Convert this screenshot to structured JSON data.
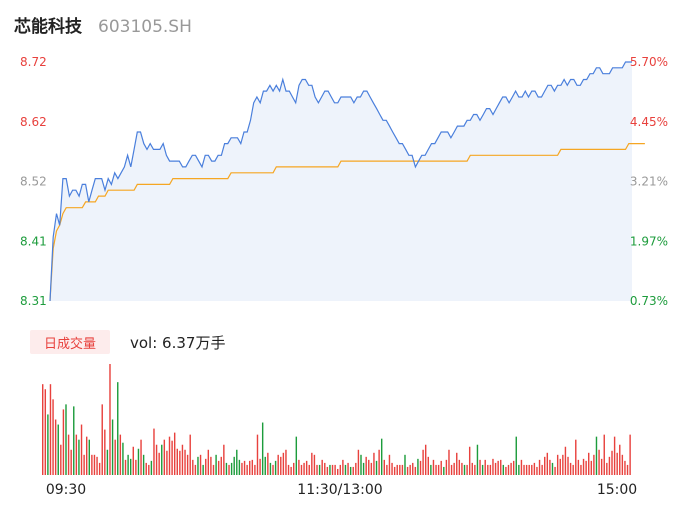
{
  "header": {
    "name": "芯能科技",
    "code": "603105.SH"
  },
  "colors": {
    "up": "#e8413d",
    "down": "#1d9c3c",
    "price_line": "#4a7fdc",
    "avg_line": "#f5a623",
    "area_fill": "#eef3fb"
  },
  "chart_data": [
    {
      "type": "line",
      "x_ticks": [
        "09:30",
        "11:30/13:00",
        "15:00"
      ],
      "y_left_ticks": [
        "8.72",
        "8.62",
        "8.52",
        "8.41",
        "8.31"
      ],
      "y_right_ticks": [
        "5.70%",
        "4.45%",
        "3.21%",
        "1.97%",
        "0.73%"
      ],
      "ylim": [
        8.31,
        8.72
      ],
      "series": [
        {
          "values": [
            8.31,
            8.42,
            8.46,
            8.44,
            8.52,
            8.52,
            8.49,
            8.5,
            8.5,
            8.49,
            8.51,
            8.51,
            8.48,
            8.5,
            8.52,
            8.52,
            8.52,
            8.5,
            8.52,
            8.51,
            8.53,
            8.52,
            8.53,
            8.54,
            8.56,
            8.54,
            8.57,
            8.6,
            8.6,
            8.58,
            8.57,
            8.58,
            8.57,
            8.57,
            8.57,
            8.58,
            8.56,
            8.55,
            8.55,
            8.55,
            8.55,
            8.54,
            8.54,
            8.55,
            8.56,
            8.56,
            8.55,
            8.54,
            8.56,
            8.56,
            8.55,
            8.55,
            8.56,
            8.56,
            8.58,
            8.58,
            8.59,
            8.59,
            8.59,
            8.58,
            8.6,
            8.6,
            8.62,
            8.65,
            8.66,
            8.65,
            8.67,
            8.67,
            8.68,
            8.67,
            8.68,
            8.67,
            8.69,
            8.67,
            8.67,
            8.66,
            8.65,
            8.68,
            8.69,
            8.69,
            8.68,
            8.68,
            8.66,
            8.65,
            8.66,
            8.67,
            8.67,
            8.66,
            8.65,
            8.65,
            8.66,
            8.66,
            8.66,
            8.66,
            8.65,
            8.66,
            8.66,
            8.67,
            8.67,
            8.66,
            8.65,
            8.64,
            8.63,
            8.62,
            8.62,
            8.61,
            8.6,
            8.59,
            8.58,
            8.58,
            8.57,
            8.56,
            8.56,
            8.54,
            8.55,
            8.56,
            8.56,
            8.57,
            8.58,
            8.58,
            8.59,
            8.6,
            8.6,
            8.6,
            8.59,
            8.6,
            8.61,
            8.61,
            8.61,
            8.62,
            8.62,
            8.63,
            8.63,
            8.62,
            8.63,
            8.64,
            8.64,
            8.63,
            8.64,
            8.65,
            8.66,
            8.66,
            8.65,
            8.66,
            8.67,
            8.66,
            8.66,
            8.67,
            8.66,
            8.67,
            8.67,
            8.66,
            8.66,
            8.67,
            8.68,
            8.68,
            8.67,
            8.68,
            8.68,
            8.69,
            8.68,
            8.69,
            8.69,
            8.68,
            8.68,
            8.69,
            8.69,
            8.7,
            8.7,
            8.71,
            8.71,
            8.7,
            8.7,
            8.7,
            8.71,
            8.71,
            8.71,
            8.71,
            8.72,
            8.72,
            8.72
          ]
        },
        {
          "values": [
            8.31,
            8.4,
            8.43,
            8.44,
            8.46,
            8.47,
            8.47,
            8.47,
            8.47,
            8.47,
            8.47,
            8.48,
            8.48,
            8.48,
            8.48,
            8.49,
            8.49,
            8.49,
            8.5,
            8.5,
            8.5,
            8.5,
            8.5,
            8.5,
            8.5,
            8.5,
            8.5,
            8.51,
            8.51,
            8.51,
            8.51,
            8.51,
            8.51,
            8.51,
            8.51,
            8.51,
            8.51,
            8.51,
            8.52,
            8.52,
            8.52,
            8.52,
            8.52,
            8.52,
            8.52,
            8.52,
            8.52,
            8.52,
            8.52,
            8.52,
            8.52,
            8.52,
            8.52,
            8.52,
            8.52,
            8.52,
            8.53,
            8.53,
            8.53,
            8.53,
            8.53,
            8.53,
            8.53,
            8.53,
            8.53,
            8.53,
            8.53,
            8.53,
            8.53,
            8.53,
            8.54,
            8.54,
            8.54,
            8.54,
            8.54,
            8.54,
            8.54,
            8.54,
            8.54,
            8.54,
            8.54,
            8.54,
            8.54,
            8.54,
            8.54,
            8.54,
            8.54,
            8.54,
            8.54,
            8.54,
            8.55,
            8.55,
            8.55,
            8.55,
            8.55,
            8.55,
            8.55,
            8.55,
            8.55,
            8.55,
            8.55,
            8.55,
            8.55,
            8.55,
            8.55,
            8.55,
            8.55,
            8.55,
            8.55,
            8.55,
            8.55,
            8.55,
            8.55,
            8.55,
            8.55,
            8.55,
            8.55,
            8.55,
            8.55,
            8.55,
            8.55,
            8.55,
            8.55,
            8.55,
            8.55,
            8.55,
            8.55,
            8.55,
            8.55,
            8.55,
            8.56,
            8.56,
            8.56,
            8.56,
            8.56,
            8.56,
            8.56,
            8.56,
            8.56,
            8.56,
            8.56,
            8.56,
            8.56,
            8.56,
            8.56,
            8.56,
            8.56,
            8.56,
            8.56,
            8.56,
            8.56,
            8.56,
            8.56,
            8.56,
            8.56,
            8.56,
            8.56,
            8.56,
            8.57,
            8.57,
            8.57,
            8.57,
            8.57,
            8.57,
            8.57,
            8.57,
            8.57,
            8.57,
            8.57,
            8.57,
            8.57,
            8.57,
            8.57,
            8.57,
            8.57,
            8.57,
            8.57,
            8.57,
            8.57,
            8.58,
            8.58,
            8.58,
            8.58,
            8.58,
            8.58
          ]
        }
      ]
    },
    {
      "type": "bar",
      "legend_label": "日成交量",
      "vol_label": "vol: 6.37万手",
      "values": [
        90,
        85,
        60,
        90,
        75,
        55,
        50,
        30,
        65,
        70,
        40,
        25,
        68,
        40,
        35,
        50,
        20,
        38,
        35,
        20,
        20,
        18,
        12,
        70,
        45,
        25,
        110,
        55,
        35,
        92,
        40,
        32,
        15,
        20,
        16,
        28,
        15,
        26,
        35,
        20,
        12,
        10,
        14,
        46,
        30,
        22,
        30,
        35,
        24,
        38,
        34,
        42,
        26,
        24,
        30,
        25,
        20,
        40,
        15,
        10,
        18,
        20,
        10,
        16,
        25,
        18,
        10,
        20,
        14,
        18,
        30,
        12,
        10,
        12,
        18,
        25,
        15,
        12,
        14,
        10,
        14,
        15,
        10,
        40,
        16,
        52,
        18,
        22,
        12,
        10,
        14,
        20,
        18,
        22,
        25,
        10,
        8,
        12,
        38,
        15,
        10,
        12,
        14,
        10,
        22,
        20,
        10,
        10,
        15,
        12,
        8,
        10,
        10,
        10,
        6,
        10,
        15,
        10,
        12,
        8,
        8,
        12,
        25,
        20,
        12,
        18,
        15,
        12,
        22,
        14,
        25,
        36,
        15,
        10,
        20,
        12,
        8,
        10,
        10,
        10,
        20,
        8,
        10,
        12,
        8,
        16,
        14,
        25,
        30,
        18,
        10,
        15,
        10,
        10,
        14,
        8,
        15,
        25,
        10,
        12,
        22,
        15,
        12,
        10,
        10,
        28,
        12,
        10,
        30,
        15,
        10,
        15,
        10,
        10,
        16,
        12,
        14,
        15,
        10,
        8,
        10,
        12,
        14,
        38,
        10,
        15,
        10,
        10,
        10,
        10,
        12,
        8,
        15,
        10,
        18,
        22,
        15,
        12,
        8,
        20,
        16,
        20,
        28,
        18,
        12,
        10,
        35,
        15,
        10,
        16,
        14,
        22,
        14,
        20,
        38,
        25,
        16,
        40,
        12,
        18,
        24,
        38,
        22,
        30,
        20,
        14,
        10,
        40
      ],
      "directions": [
        "u",
        "u",
        "d",
        "u",
        "u",
        "u",
        "d",
        "u",
        "u",
        "d",
        "u",
        "u",
        "d",
        "u",
        "d",
        "u",
        "u",
        "u",
        "d",
        "u",
        "u",
        "u",
        "u",
        "u",
        "u",
        "d",
        "u",
        "d",
        "u",
        "d",
        "u",
        "d",
        "u",
        "d",
        "d",
        "u",
        "u",
        "d",
        "u",
        "d",
        "u",
        "u",
        "d",
        "u",
        "u",
        "u",
        "d",
        "u",
        "u",
        "u",
        "u",
        "u",
        "u",
        "u",
        "u",
        "u",
        "u",
        "u",
        "u",
        "u",
        "d",
        "u",
        "d",
        "u",
        "u",
        "u",
        "u",
        "d",
        "u",
        "u",
        "u",
        "d",
        "u",
        "d",
        "d",
        "d",
        "d",
        "u",
        "u",
        "u",
        "u",
        "u",
        "u",
        "u",
        "u",
        "d",
        "d",
        "u",
        "d",
        "u",
        "d",
        "u",
        "u",
        "u",
        "u",
        "u",
        "u",
        "u",
        "d",
        "u",
        "u",
        "u",
        "u",
        "u",
        "u",
        "u",
        "u",
        "d",
        "u",
        "u",
        "u",
        "d",
        "u",
        "u",
        "u",
        "u",
        "u",
        "d",
        "u",
        "d",
        "u",
        "u",
        "u",
        "d",
        "d",
        "u",
        "u",
        "u",
        "u",
        "d",
        "u",
        "d",
        "u",
        "u",
        "u",
        "u",
        "u",
        "u",
        "u",
        "u",
        "d",
        "u",
        "u",
        "u",
        "u",
        "d",
        "u",
        "u",
        "u",
        "u",
        "d",
        "u",
        "u",
        "u",
        "u",
        "d",
        "u",
        "u",
        "u",
        "u",
        "u",
        "u",
        "u",
        "d",
        "u",
        "u",
        "u",
        "u",
        "d",
        "u",
        "d",
        "u",
        "u",
        "u",
        "u",
        "u",
        "u",
        "u",
        "d",
        "u",
        "u",
        "u",
        "u",
        "d",
        "d",
        "u",
        "u",
        "u",
        "u",
        "u",
        "u",
        "u",
        "u",
        "u",
        "u",
        "u",
        "u",
        "d",
        "u",
        "u",
        "u",
        "u",
        "u",
        "u",
        "u",
        "u",
        "u",
        "u",
        "u",
        "u",
        "u",
        "u",
        "u",
        "u",
        "d",
        "u",
        "u",
        "u",
        "u",
        "u",
        "u",
        "u",
        "u",
        "u",
        "u",
        "u",
        "u",
        "u",
        "u",
        "u",
        "u",
        "u"
      ]
    }
  ]
}
